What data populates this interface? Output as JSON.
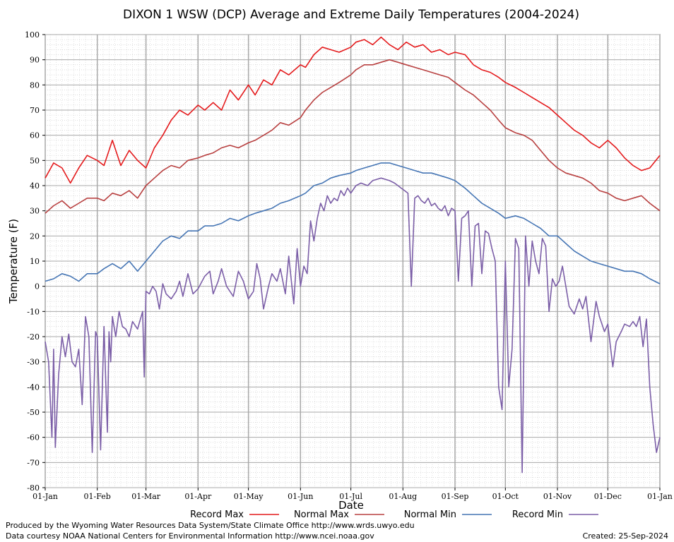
{
  "chart_data": {
    "type": "line",
    "title": "DIXON 1 WSW (DCP) Average and Extreme Daily Temperatures (2004-2024)",
    "xlabel": "Date",
    "ylabel": "Temperature (F)",
    "ylim": [
      -80,
      100
    ],
    "yticks": [
      100,
      90,
      80,
      70,
      60,
      50,
      40,
      30,
      20,
      10,
      0,
      -10,
      -20,
      -30,
      -40,
      -50,
      -60,
      -70,
      -80
    ],
    "xticks": [
      {
        "label": "01-Jan",
        "day": 0
      },
      {
        "label": "01-Feb",
        "day": 31
      },
      {
        "label": "01-Mar",
        "day": 60
      },
      {
        "label": "01-Apr",
        "day": 91
      },
      {
        "label": "01-May",
        "day": 121
      },
      {
        "label": "01-Jun",
        "day": 152
      },
      {
        "label": "01-Jul",
        "day": 182
      },
      {
        "label": "01-Aug",
        "day": 213
      },
      {
        "label": "01-Sep",
        "day": 244
      },
      {
        "label": "01-Oct",
        "day": 274
      },
      {
        "label": "01-Nov",
        "day": 305
      },
      {
        "label": "01-Dec",
        "day": 335
      },
      {
        "label": "01-Jan",
        "day": 366
      }
    ],
    "xlim": [
      0,
      366
    ],
    "grid": true,
    "legend_position": "bottom",
    "series": [
      {
        "name": "Record Max",
        "color": "#e41a1c",
        "x": [
          0,
          5,
          10,
          15,
          20,
          25,
          31,
          35,
          40,
          45,
          50,
          55,
          60,
          65,
          70,
          75,
          80,
          85,
          91,
          95,
          100,
          105,
          110,
          115,
          121,
          125,
          130,
          135,
          140,
          145,
          152,
          155,
          160,
          165,
          170,
          175,
          182,
          185,
          190,
          195,
          200,
          205,
          210,
          215,
          220,
          225,
          230,
          235,
          240,
          244,
          250,
          255,
          260,
          265,
          270,
          274,
          280,
          285,
          290,
          295,
          300,
          305,
          310,
          315,
          320,
          325,
          330,
          335,
          340,
          345,
          350,
          355,
          360,
          366
        ],
        "y": [
          43,
          49,
          47,
          41,
          47,
          52,
          50,
          48,
          58,
          48,
          54,
          50,
          47,
          55,
          60,
          66,
          70,
          68,
          72,
          70,
          73,
          70,
          78,
          74,
          80,
          76,
          82,
          80,
          86,
          84,
          88,
          87,
          92,
          95,
          94,
          93,
          95,
          97,
          98,
          96,
          99,
          96,
          94,
          97,
          95,
          96,
          93,
          94,
          92,
          93,
          92,
          88,
          86,
          85,
          83,
          81,
          79,
          77,
          75,
          73,
          71,
          68,
          65,
          62,
          60,
          57,
          55,
          58,
          55,
          51,
          48,
          46,
          47,
          52
        ]
      },
      {
        "name": "Normal Max",
        "color": "#b84040",
        "x": [
          0,
          5,
          10,
          15,
          20,
          25,
          31,
          35,
          40,
          45,
          50,
          55,
          60,
          65,
          70,
          75,
          80,
          85,
          91,
          95,
          100,
          105,
          110,
          115,
          121,
          125,
          130,
          135,
          140,
          145,
          152,
          155,
          160,
          165,
          170,
          175,
          182,
          185,
          190,
          195,
          200,
          205,
          210,
          215,
          220,
          225,
          230,
          235,
          240,
          244,
          250,
          255,
          260,
          265,
          270,
          274,
          280,
          285,
          290,
          295,
          300,
          305,
          310,
          315,
          320,
          325,
          330,
          335,
          340,
          345,
          350,
          355,
          360,
          366
        ],
        "y": [
          29,
          32,
          34,
          31,
          33,
          35,
          35,
          34,
          37,
          36,
          38,
          35,
          40,
          43,
          46,
          48,
          47,
          50,
          51,
          52,
          53,
          55,
          56,
          55,
          57,
          58,
          60,
          62,
          65,
          64,
          67,
          70,
          74,
          77,
          79,
          81,
          84,
          86,
          88,
          88,
          89,
          90,
          89,
          88,
          87,
          86,
          85,
          84,
          83,
          81,
          78,
          76,
          73,
          70,
          66,
          63,
          61,
          60,
          58,
          54,
          50,
          47,
          45,
          44,
          43,
          41,
          38,
          37,
          35,
          34,
          35,
          36,
          33,
          30
        ]
      },
      {
        "name": "Normal Min",
        "color": "#4575b4",
        "x": [
          0,
          5,
          10,
          15,
          20,
          25,
          31,
          35,
          40,
          45,
          50,
          55,
          60,
          65,
          70,
          75,
          80,
          85,
          91,
          95,
          100,
          105,
          110,
          115,
          121,
          125,
          130,
          135,
          140,
          145,
          152,
          155,
          160,
          165,
          170,
          175,
          182,
          185,
          190,
          195,
          200,
          205,
          210,
          215,
          220,
          225,
          230,
          235,
          240,
          244,
          250,
          255,
          260,
          265,
          270,
          274,
          280,
          285,
          290,
          295,
          300,
          305,
          310,
          315,
          320,
          325,
          330,
          335,
          340,
          345,
          350,
          355,
          360,
          366
        ],
        "y": [
          2,
          3,
          5,
          4,
          2,
          5,
          5,
          7,
          9,
          7,
          10,
          6,
          10,
          14,
          18,
          20,
          19,
          22,
          22,
          24,
          24,
          25,
          27,
          26,
          28,
          29,
          30,
          31,
          33,
          34,
          36,
          37,
          40,
          41,
          43,
          44,
          45,
          46,
          47,
          48,
          49,
          49,
          48,
          47,
          46,
          45,
          45,
          44,
          43,
          42,
          39,
          36,
          33,
          31,
          29,
          27,
          28,
          27,
          25,
          23,
          20,
          20,
          17,
          14,
          12,
          10,
          9,
          8,
          7,
          6,
          6,
          5,
          3,
          1
        ]
      },
      {
        "name": "Record Min",
        "color": "#7b5ea7",
        "x": [
          0,
          2,
          4,
          5,
          6,
          8,
          10,
          12,
          14,
          16,
          18,
          20,
          22,
          24,
          26,
          28,
          30,
          31,
          33,
          35,
          37,
          38,
          39,
          40,
          42,
          44,
          46,
          48,
          50,
          52,
          55,
          58,
          59,
          60,
          62,
          64,
          66,
          68,
          70,
          72,
          75,
          78,
          80,
          82,
          85,
          88,
          91,
          95,
          98,
          100,
          103,
          105,
          108,
          112,
          115,
          118,
          121,
          124,
          126,
          128,
          130,
          133,
          135,
          138,
          140,
          143,
          145,
          148,
          150,
          152,
          154,
          156,
          158,
          160,
          162,
          164,
          166,
          168,
          170,
          172,
          174,
          176,
          178,
          180,
          182,
          185,
          188,
          192,
          195,
          200,
          205,
          208,
          210,
          212,
          214,
          216,
          218,
          220,
          222,
          224,
          226,
          228,
          230,
          232,
          234,
          236,
          238,
          240,
          242,
          244,
          246,
          248,
          250,
          252,
          254,
          256,
          258,
          260,
          262,
          264,
          266,
          268,
          270,
          272,
          274,
          276,
          278,
          280,
          282,
          284,
          286,
          288,
          290,
          292,
          294,
          296,
          298,
          300,
          302,
          304,
          306,
          308,
          310,
          312,
          315,
          318,
          320,
          322,
          325,
          328,
          330,
          333,
          335,
          338,
          340,
          343,
          345,
          348,
          350,
          352,
          354,
          356,
          358,
          360,
          362,
          364,
          366
        ],
        "y": [
          -22,
          -30,
          -60,
          -25,
          -64,
          -35,
          -20,
          -28,
          -19,
          -30,
          -32,
          -25,
          -47,
          -12,
          -20,
          -66,
          -18,
          -20,
          -65,
          -16,
          -58,
          -18,
          -30,
          -12,
          -20,
          -10,
          -16,
          -17,
          -20,
          -14,
          -17,
          -10,
          -36,
          -2,
          -3,
          0,
          -2,
          -9,
          1,
          -3,
          -5,
          -2,
          2,
          -4,
          5,
          -3,
          -1,
          4,
          6,
          -3,
          2,
          7,
          0,
          -4,
          6,
          2,
          -5,
          -2,
          9,
          3,
          -9,
          0,
          5,
          2,
          7,
          -3,
          12,
          -7,
          15,
          0,
          8,
          5,
          26,
          18,
          27,
          33,
          30,
          36,
          33,
          35,
          34,
          38,
          36,
          39,
          37,
          40,
          41,
          40,
          42,
          43,
          42,
          41,
          40,
          39,
          38,
          37,
          0,
          35,
          36,
          34,
          33,
          35,
          32,
          33,
          31,
          30,
          32,
          28,
          31,
          30,
          2,
          27,
          28,
          30,
          0,
          24,
          25,
          5,
          22,
          21,
          15,
          10,
          -40,
          -49,
          10,
          -40,
          -25,
          19,
          15,
          -74,
          20,
          0,
          18,
          10,
          5,
          19,
          16,
          -10,
          3,
          0,
          2,
          8,
          0,
          -8,
          -11,
          -5,
          -9,
          -4,
          -22,
          -6,
          -12,
          -18,
          -15,
          -32,
          -22,
          -18,
          -15,
          -16,
          -14,
          -16,
          -12,
          -24,
          -13,
          -40,
          -55,
          -66,
          -60
        ]
      }
    ]
  },
  "legend": {
    "items": [
      "Record Max",
      "Normal Max",
      "Normal Min",
      "Record Min"
    ]
  },
  "footer": {
    "line1": "Produced by the Wyoming Water Resources Data System/State Climate Office http://www.wrds.uwyo.edu",
    "line2": "Data courtesy NOAA National Centers for Environmental Information http://www.ncei.noaa.gov",
    "created": "Created:  25-Sep-2024"
  }
}
